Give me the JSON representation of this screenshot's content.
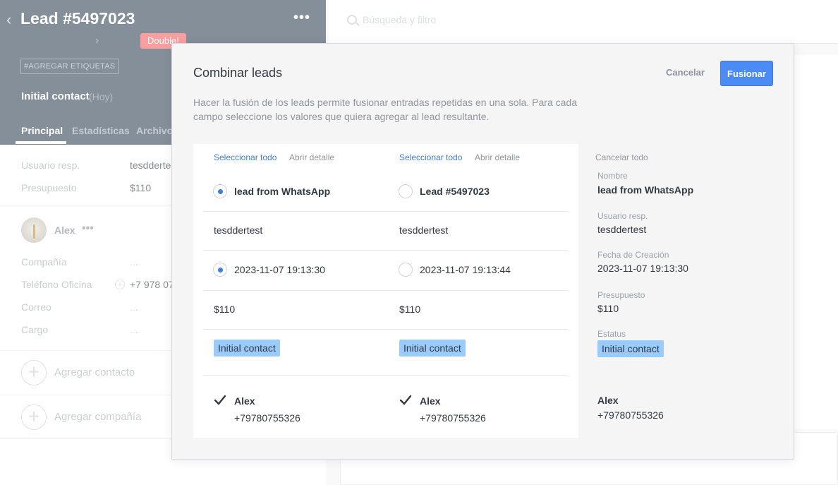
{
  "lead_card": {
    "title": "Lead #5497023",
    "more_icon": "more-horizontal-icon",
    "double_badge": "Double!",
    "tags_button": "#AGREGAR ETIQUETAS",
    "stage": {
      "name": "Initial contact",
      "date": "(Hoy)"
    },
    "tabs": [
      "Principal",
      "Estadísticas",
      "Archivos"
    ],
    "fields": [
      {
        "label": "Usuario resp.",
        "value": "tesddertest"
      },
      {
        "label": "Presupuesto",
        "value": "$110"
      }
    ],
    "contact": {
      "name": "Alex",
      "fields": [
        {
          "label": "Compañía",
          "value": "..."
        },
        {
          "label": "Teléfono Oficina",
          "value": "+7 978 07"
        },
        {
          "label": "Correo",
          "value": "..."
        },
        {
          "label": "Cargo",
          "value": "..."
        }
      ]
    },
    "add_contact": "Agregar contacto",
    "add_company": "Agregar compañía"
  },
  "search": {
    "placeholder": "Búsqueda y filtro"
  },
  "modal": {
    "title": "Combinar leads",
    "cancel_label": "Cancelar",
    "merge_label": "Fusionar",
    "description": "Hacer la fusión de los leads permite fusionar entradas repetidas en una sola. Para cada campo seleccione los valores que quiera agregar al lead resultante.",
    "columns": [
      {
        "select_all": "Seleccionar todo",
        "open_detail": "Abrir detalle",
        "name": "lead from WhatsApp",
        "name_selected": true,
        "user": "tesddertest",
        "created": "2023-11-07 19:13:30",
        "created_selected": true,
        "budget": "$110",
        "status": "Initial contact",
        "contact_name": "Alex",
        "contact_phone": "+79780755326",
        "contact_checked": true
      },
      {
        "select_all": "Seleccionar todo",
        "open_detail": "Abrir detalle",
        "name": "Lead #5497023",
        "name_selected": false,
        "user": "tesddertest",
        "created": "2023-11-07 19:13:44",
        "created_selected": false,
        "budget": "$110",
        "status": "Initial contact",
        "contact_name": "Alex",
        "contact_phone": "+79780755326",
        "contact_checked": true
      }
    ],
    "result": {
      "cancel_all": "Cancelar todo",
      "name_label": "Nombre",
      "name": "lead from WhatsApp",
      "user_label": "Usuario resp.",
      "user": "tesddertest",
      "created_label": "Fecha de Creación",
      "created": "2023-11-07 19:13:30",
      "budget_label": "Presupuesto",
      "budget": "$110",
      "status_label": "Estatus",
      "status": "Initial contact",
      "contact_name": "Alex",
      "contact_phone": "+79780755326"
    }
  },
  "colors": {
    "header_bg": "#2e3e51",
    "accent_blue": "#4c8bf5",
    "link_blue": "#3f7fd6",
    "status_pill": "#99ccfd",
    "badge_red": "#f45b5b"
  }
}
